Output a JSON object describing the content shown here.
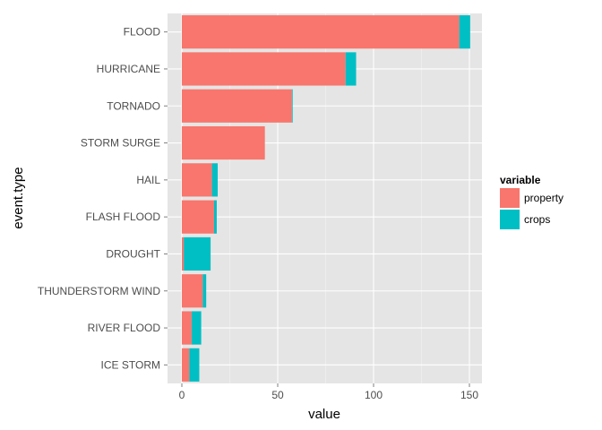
{
  "chart_data": {
    "type": "bar",
    "orientation": "horizontal",
    "stacked": true,
    "title": "",
    "xlabel": "value",
    "ylabel": "event.type",
    "xlim": [
      0,
      150
    ],
    "x_ticks": [
      0,
      50,
      100,
      150
    ],
    "grid": true,
    "legend_position": "right",
    "legend_title": "variable",
    "categories": [
      "FLOOD",
      "HURRICANE",
      "TORNADO",
      "STORM SURGE",
      "HAIL",
      "FLASH FLOOD",
      "DROUGHT",
      "THUNDERSTORM WIND",
      "RIVER FLOOD",
      "ICE STORM"
    ],
    "series": [
      {
        "name": "property",
        "color": "#F8766D",
        "values": [
          144.7,
          85.4,
          57.4,
          43.3,
          15.7,
          16.8,
          1.0,
          10.9,
          5.1,
          3.9
        ]
      },
      {
        "name": "crops",
        "color": "#00BFC4",
        "values": [
          5.7,
          5.5,
          0.4,
          0.0,
          3.0,
          1.4,
          14.0,
          1.8,
          5.0,
          5.2
        ]
      }
    ]
  }
}
